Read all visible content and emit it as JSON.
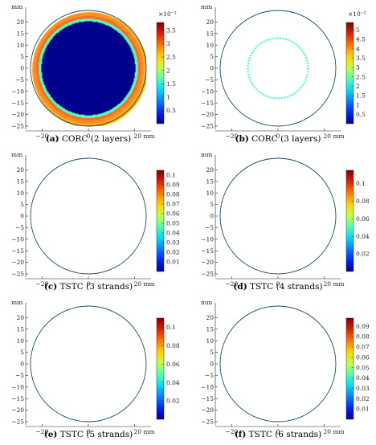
{
  "colors": {
    "colormap": [
      "#00008f",
      "#0020ff",
      "#0080ff",
      "#00dcff",
      "#50ffaf",
      "#c8ff37",
      "#ffd200",
      "#ff7800",
      "#e11e00",
      "#800000"
    ],
    "background_field": "#4ad2ff",
    "axis_line": "#222222"
  },
  "chart_data": [
    {
      "type": "heatmap",
      "caption_tag": "(a)",
      "caption_text": " CORC (2 layers)",
      "unit_label": "mm",
      "x_ticks": [
        "−20",
        "0",
        "20 mm"
      ],
      "y_ticks": [
        "20",
        "15",
        "10",
        "5",
        "0",
        "−5",
        "−10",
        "−15",
        "−20",
        "−25"
      ],
      "colorbar_ticks": [
        "3.5",
        "3",
        "2.5",
        "2",
        "1.5",
        "1",
        "0.5"
      ],
      "colorbar_range": [
        0,
        3.8
      ],
      "colorbar_exponent": "×10⁻²",
      "structure": {
        "kind": "annulus",
        "core_radius_mm": 21,
        "outer_radius_mm": 25,
        "core_level": 0.0,
        "ring_level_in": 0.85,
        "ring_level_out": 0.72,
        "outside_level": null
      }
    },
    {
      "type": "heatmap",
      "caption_tag": "(b)",
      "caption_text": " CORC (3 layers)",
      "unit_label": "mm",
      "x_ticks": [
        "−20",
        "0",
        "20 mm"
      ],
      "y_ticks": [
        "20",
        "15",
        "10",
        "5",
        "0",
        "−5",
        "−10",
        "−15",
        "−20",
        "−25"
      ],
      "colorbar_ticks": [
        "5",
        "4.5",
        "4",
        "3.5",
        "3",
        "2.5",
        "2",
        "1.5",
        "1",
        "0.5"
      ],
      "colorbar_range": [
        0,
        5.4
      ],
      "colorbar_exponent": "×10⁻²",
      "structure": {
        "kind": "annulus",
        "core_radius_mm": 13,
        "outer_radius_mm": 25,
        "core_level": 0.0,
        "ring_level_in": 0.92,
        "ring_level_out": 0.68,
        "outside_level": null
      }
    },
    {
      "type": "heatmap",
      "caption_tag": "(c)",
      "caption_text": " TSTC (3 strands)",
      "unit_label": "mm",
      "x_ticks": [
        "−20",
        "0",
        "20 mm"
      ],
      "y_ticks": [
        "20",
        "15",
        "10",
        "5",
        "0",
        "−5",
        "−10",
        "−15",
        "−20",
        "−25"
      ],
      "colorbar_ticks": [
        "0.1",
        "0.09",
        "0.08",
        "0.07",
        "0.06",
        "0.05",
        "0.04",
        "0.03",
        "0.02",
        "0.01"
      ],
      "colorbar_range": [
        0,
        0.105
      ],
      "colorbar_exponent": "",
      "structure": {
        "kind": "strands",
        "strands": 3,
        "strand_radius_mm": 5.5,
        "strand_width_mm": 3.2,
        "outer_radius_mm": 25,
        "peak_level": 0.95,
        "inner_level": 0.35,
        "outside_level": 0.35,
        "edge_level": 0.3
      }
    },
    {
      "type": "heatmap",
      "caption_tag": "(d)",
      "caption_text": " TSTC (4 strands)",
      "unit_label": "mm",
      "x_ticks": [
        "−20",
        "0",
        "20 mm"
      ],
      "y_ticks": [
        "20",
        "15",
        "10",
        "5",
        "0",
        "−5",
        "−10",
        "−15",
        "−20",
        "−25"
      ],
      "colorbar_ticks": [
        "0.1",
        "0.08",
        "0.06",
        "0.04",
        "0.02"
      ],
      "colorbar_range": [
        0,
        0.115
      ],
      "colorbar_exponent": "",
      "structure": {
        "kind": "strands",
        "strands": 4,
        "strand_radius_mm": 5.2,
        "strand_width_mm": 3.4,
        "outer_radius_mm": 25,
        "peak_level": 0.95,
        "inner_level": 0.0,
        "outside_level": 0.33,
        "edge_level": 0.28
      }
    },
    {
      "type": "heatmap",
      "caption_tag": "(e)",
      "caption_text": " TSTC (5 strands)",
      "unit_label": "mm",
      "x_ticks": [
        "−20",
        "0",
        "20 mm"
      ],
      "y_ticks": [
        "20",
        "15",
        "10",
        "5",
        "0",
        "−5",
        "−10",
        "−15",
        "−20",
        "−25"
      ],
      "colorbar_ticks": [
        "0.1",
        "0.08",
        "0.06",
        "0.04",
        "0.02"
      ],
      "colorbar_range": [
        0,
        0.11
      ],
      "colorbar_exponent": "",
      "structure": {
        "kind": "strands",
        "strands": 5,
        "strand_radius_mm": 6.0,
        "strand_width_mm": 3.0,
        "outer_radius_mm": 25,
        "peak_level": 0.95,
        "inner_level": 0.0,
        "outside_level": 0.33,
        "edge_level": 0.28
      }
    },
    {
      "type": "heatmap",
      "caption_tag": "(f)",
      "caption_text": " TSTC (6 strands)",
      "unit_label": "mm",
      "x_ticks": [
        "−20",
        "0",
        "20 mm"
      ],
      "y_ticks": [
        "20",
        "15",
        "10",
        "5",
        "0",
        "−5",
        "−10",
        "−15",
        "−20",
        "−25"
      ],
      "colorbar_ticks": [
        "0.09",
        "0.08",
        "0.07",
        "0.06",
        "0.05",
        "0.04",
        "0.03",
        "0.02",
        "0.01"
      ],
      "colorbar_range": [
        0,
        0.098
      ],
      "colorbar_exponent": "",
      "structure": {
        "kind": "strands",
        "strands": 6,
        "strand_radius_mm": 7.0,
        "strand_width_mm": 2.8,
        "outer_radius_mm": 25,
        "peak_level": 0.95,
        "inner_level": 0.0,
        "outside_level": 0.33,
        "edge_level": 0.28
      }
    }
  ]
}
